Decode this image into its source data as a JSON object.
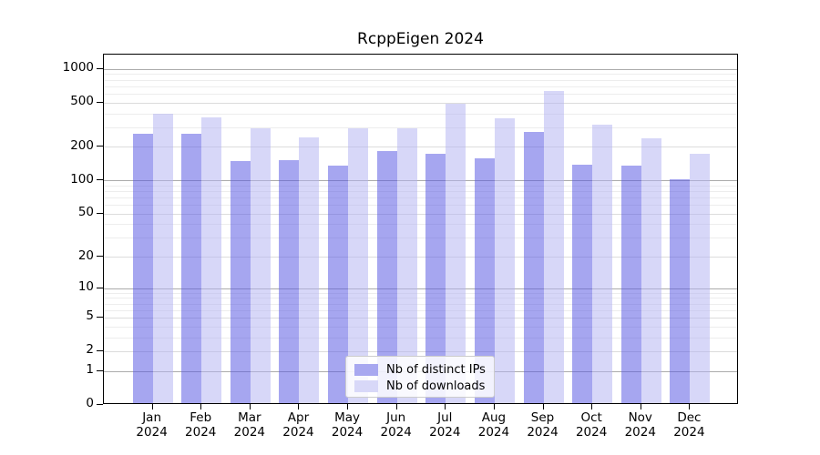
{
  "chart_data": {
    "type": "bar",
    "title": "RcppEigen 2024",
    "categories": [
      "Jan 2024",
      "Feb 2024",
      "Mar 2024",
      "Apr 2024",
      "May 2024",
      "Jun 2024",
      "Jul 2024",
      "Aug 2024",
      "Sep 2024",
      "Oct 2024",
      "Nov 2024",
      "Dec 2024"
    ],
    "months": [
      "Jan",
      "Feb",
      "Mar",
      "Apr",
      "May",
      "Jun",
      "Jul",
      "Aug",
      "Sep",
      "Oct",
      "Nov",
      "Dec"
    ],
    "year": "2024",
    "series": [
      {
        "name": "Nb of distinct IPs",
        "color": "#a8a8f0",
        "fill_rgba": "rgba(84,84,226,0.52)",
        "values": [
          255,
          255,
          144,
          147,
          131,
          180,
          169,
          155,
          265,
          135,
          133,
          100
        ]
      },
      {
        "name": "Nb of downloads",
        "color": "#d8d8f8",
        "fill_rgba": "rgba(178,178,242,0.52)",
        "values": [
          385,
          357,
          287,
          237,
          287,
          287,
          475,
          352,
          615,
          308,
          234,
          170
        ]
      }
    ],
    "xlabel": "",
    "ylabel": "",
    "y_scale": "log1p",
    "y_ticks": [
      0,
      1,
      2,
      5,
      10,
      20,
      50,
      100,
      200,
      500,
      1000
    ],
    "y_major_dark": [
      1,
      10,
      100,
      1000
    ],
    "y_minor_gridlines": [
      3,
      4,
      6,
      7,
      8,
      9,
      30,
      40,
      60,
      70,
      80,
      90,
      300,
      400,
      600,
      700,
      800,
      900
    ],
    "ylim": [
      0,
      1350
    ],
    "grid": true,
    "legend_position": "lower center",
    "colors": {
      "grid_major": "#ababab",
      "grid_mid": "#dcdcdc",
      "grid_minor": "#ededed",
      "axis": "#000000",
      "text": "#000000",
      "legend_border": "#cccccc"
    }
  }
}
